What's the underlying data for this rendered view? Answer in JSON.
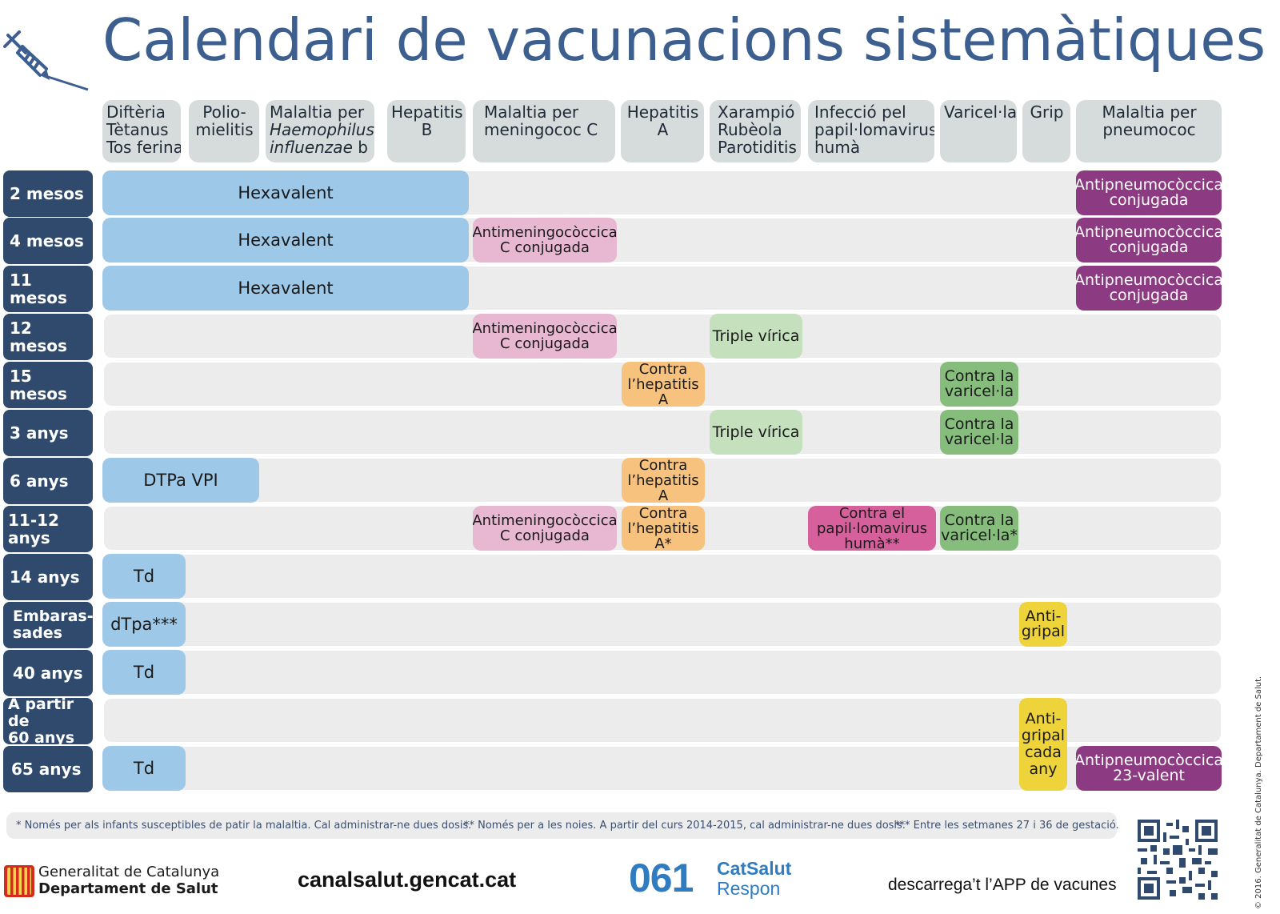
{
  "title": "Calendari de vacunacions sistemàtiques",
  "colors": {
    "title": "#3d5f8f",
    "row_label": "#2f4a6d",
    "header": "#d6dcdc",
    "hexavalent": "#9ec8e8",
    "meningococ": "#e8b8d2",
    "pneumococ": "#8c3b82",
    "triple_virica": "#c4e0bc",
    "varicel_la": "#86bd7c",
    "hepatitis_a": "#f6c27e",
    "papil_lomavirus": "#d6609c",
    "grip": "#eed43a"
  },
  "columns": {
    "c1": {
      "l1": "Diftèria",
      "l2": "Tètanus",
      "l3": "Tos ferina"
    },
    "c2": {
      "l1": "Polio-",
      "l2": "mielitis"
    },
    "c3": {
      "l1": "Malaltia per",
      "l2": "Haemophilus",
      "l3a": "influenzae",
      "l3b": " b"
    },
    "c4": {
      "l1": "Hepatitis",
      "l2": "B"
    },
    "c5": {
      "l1": "Malaltia per",
      "l2": "meningococ C"
    },
    "c6": {
      "l1": "Hepatitis",
      "l2": "A"
    },
    "c7": {
      "l1": "Xarampió",
      "l2": "Rubèola",
      "l3": "Parotiditis"
    },
    "c8": {
      "l1": "Infecció pel",
      "l2": "papil·lomavirus",
      "l3": "humà"
    },
    "c9": {
      "l1": "Varicel·la"
    },
    "c10": {
      "l1": "Grip"
    },
    "c11": {
      "l1": "Malaltia per",
      "l2": "pneumococ"
    }
  },
  "rows": {
    "r1": {
      "label": "2 mesos",
      "hexa": "Hexavalent",
      "pneumo": "Antipneumocòccica\nconjugada"
    },
    "r2": {
      "label": "4 mesos",
      "hexa": "Hexavalent",
      "mening": "Antimeningocòccica\nC conjugada",
      "pneumo": "Antipneumocòccica\nconjugada"
    },
    "r3": {
      "label": "11 mesos",
      "hexa": "Hexavalent",
      "pneumo": "Antipneumocòccica\nconjugada"
    },
    "r4": {
      "label": "12 mesos",
      "mening": "Antimeningocòccica\nC conjugada",
      "triple": "Triple vírica"
    },
    "r5": {
      "label": "15 mesos",
      "hepa": "Contra\nl’hepatitis\nA",
      "vari": "Contra la\nvaricel·la"
    },
    "r6": {
      "label": "3 anys",
      "triple": "Triple vírica",
      "vari": "Contra la\nvaricel·la"
    },
    "r7": {
      "label": "6 anys",
      "dtpa": "DTPa VPI",
      "hepa": "Contra\nl’hepatitis\nA"
    },
    "r8": {
      "label": "11-12 anys",
      "mening": "Antimeningocòccica\nC conjugada",
      "hepa": "Contra\nl’hepatitis\nA*",
      "vph": "Contra el\npapil·lomavirus\nhumà**",
      "vari": "Contra la\nvaricel·la*"
    },
    "r9": {
      "label": "14 anys",
      "td": "Td"
    },
    "r10": {
      "label": "Embaras-\nsades",
      "td": "dTpa***",
      "grip": "Anti-\ngripal"
    },
    "r11": {
      "label": "40 anys",
      "td": "Td"
    },
    "r12": {
      "label": "A partir de\n60 anys"
    },
    "r13": {
      "label": "65 anys",
      "td": "Td",
      "pneumo": "Antipneumocòccica\n23-valent"
    },
    "grip_any": "Anti-\ngripal\ncada\nany"
  },
  "footnotes": {
    "f1": "* Només per als infants susceptibles de patir la malaltia. Cal administrar-ne dues dosis.",
    "f2": "** Només per a les noies. A partir del curs 2014-2015, cal administrar-ne dues dosis.",
    "f3": "*** Entre les setmanes 27 i 36 de gestació."
  },
  "footer": {
    "gencat_l1": "Generalitat de Catalunya",
    "gencat_l2": "Departament de Salut",
    "site": "canalsalut.gencat.cat",
    "phone": "061",
    "catsalut": "CatSalut",
    "respon": "Respon",
    "app": "descarrega’t l’APP de vacunes",
    "copyright": "© 2016. Generalitat de Catalunya. Departament de Salut."
  },
  "icons": {
    "syringe": "syringe-icon",
    "gencat_logo": "gencat-logo",
    "qr": "qr-code"
  }
}
